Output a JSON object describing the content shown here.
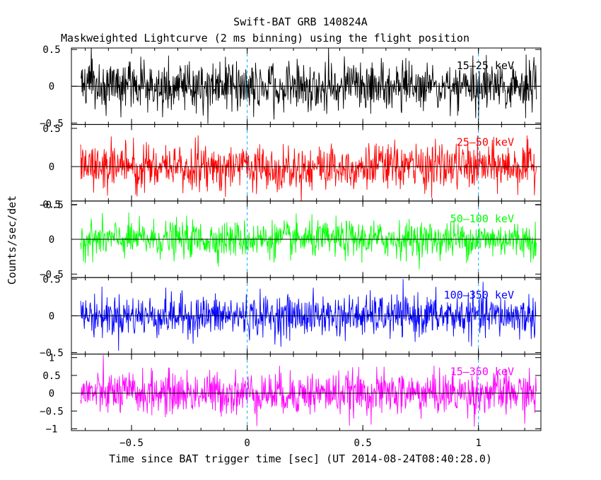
{
  "chart_data": {
    "type": "line",
    "title": "Swift-BAT GRB 140824A",
    "subtitle": "Maskweighted Lightcurve (2 ms binning) using the flight position",
    "xlabel": "Time since BAT trigger time [sec] (UT 2014-08-24T08:40:28.0)",
    "ylabel": "Counts/sec/det",
    "xlim": [
      -0.76,
      1.27
    ],
    "x_ticks": [
      -0.5,
      0,
      0.5,
      1
    ],
    "x_tick_labels": [
      "−0.5",
      "0",
      "0.5",
      "1"
    ],
    "data_x_range": [
      -0.72,
      1.25
    ],
    "bin_width_s": 0.002,
    "trigger_time_marker": 0,
    "end_time_marker": 1.0,
    "panels": [
      {
        "band": "15–25 keV",
        "color": "#000000",
        "ylim": [
          -0.52,
          0.52
        ],
        "y_ticks": [
          0.5,
          0,
          -0.5
        ],
        "y_tick_labels": [
          "0.5",
          "0",
          "−0.5"
        ],
        "noise_amplitude": 0.17
      },
      {
        "band": "25–50 keV",
        "color": "#ff0000",
        "ylim": [
          -0.45,
          0.55
        ],
        "y_ticks": [
          0.5,
          0,
          -0.5
        ],
        "y_tick_labels": [
          "0.5",
          "0",
          "−0.5"
        ],
        "noise_amplitude": 0.15
      },
      {
        "band": "50–100 keV",
        "color": "#00ff00",
        "ylim": [
          -0.55,
          0.55
        ],
        "y_ticks": [
          0.5,
          0,
          -0.5
        ],
        "y_tick_labels": [
          "0.5",
          "0",
          "−0.5"
        ],
        "noise_amplitude": 0.13
      },
      {
        "band": "100–350 keV",
        "color": "#0000ff",
        "ylim": [
          -0.52,
          0.52
        ],
        "y_ticks": [
          0.5,
          0,
          -0.5
        ],
        "y_tick_labels": [
          "0.5",
          "0",
          "−0.5"
        ],
        "noise_amplitude": 0.14
      },
      {
        "band": "15–350 keV",
        "color": "#ff00ff",
        "ylim": [
          -1.05,
          1.1
        ],
        "y_ticks": [
          1,
          0.5,
          0,
          -0.5,
          -1
        ],
        "y_tick_labels": [
          "1",
          "0.5",
          "0",
          "−0.5",
          "−1"
        ],
        "noise_amplitude": 0.3
      }
    ]
  }
}
